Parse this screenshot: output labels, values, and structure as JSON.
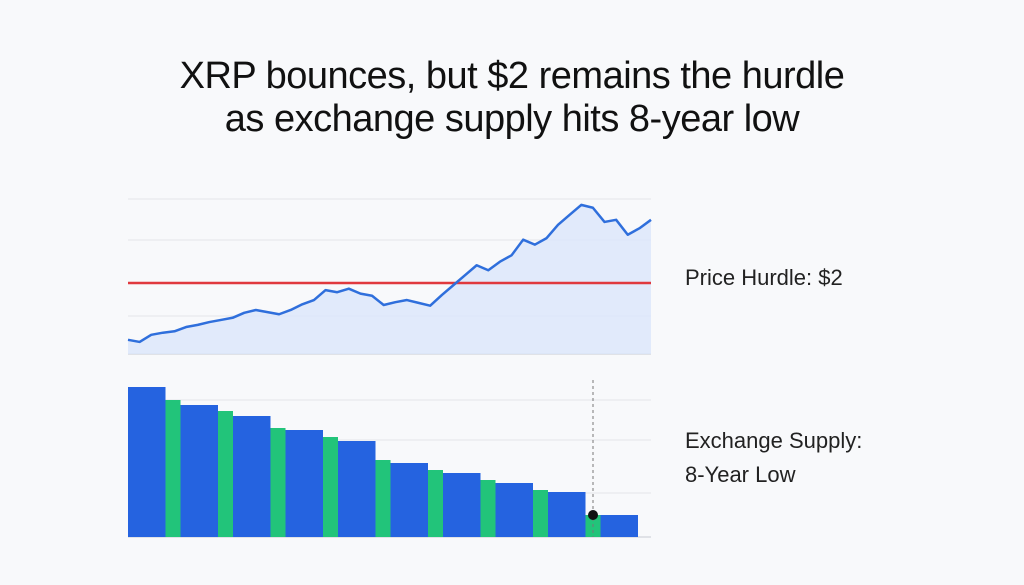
{
  "title": [
    "XRP bounces, but $2 remains the hurdle",
    "as exchange supply hits 8-year low"
  ],
  "chart_data": [
    {
      "type": "line",
      "name": "XRP price",
      "color": "#2f6fdc",
      "fill": "#dbe6fb",
      "values": [
        1.2,
        1.17,
        1.27,
        1.3,
        1.32,
        1.38,
        1.41,
        1.45,
        1.48,
        1.51,
        1.58,
        1.62,
        1.59,
        1.56,
        1.62,
        1.7,
        1.76,
        1.9,
        1.87,
        1.92,
        1.85,
        1.82,
        1.69,
        1.73,
        1.76,
        1.72,
        1.68,
        1.83,
        1.97,
        2.11,
        2.25,
        2.18,
        2.3,
        2.39,
        2.61,
        2.54,
        2.63,
        2.82,
        2.96,
        3.1,
        3.06,
        2.86,
        2.89,
        2.68,
        2.77,
        2.89
      ],
      "ylim": [
        1,
        3.2
      ],
      "hurdle": 2,
      "hurdle_color": "#e0393e",
      "annotation": "Price Hurdle: $2"
    },
    {
      "type": "bar",
      "name": "Exchange supply",
      "values": [
        150,
        137,
        132,
        126,
        121,
        109,
        107,
        100,
        96,
        77,
        74,
        67,
        64,
        57,
        54,
        47,
        45,
        22,
        22
      ],
      "colors": [
        "#2563e0",
        "#22c47a",
        "#2563e0",
        "#22c47a",
        "#2563e0",
        "#22c47a",
        "#2563e0",
        "#22c47a",
        "#2563e0",
        "#22c47a",
        "#2563e0",
        "#22c47a",
        "#2563e0",
        "#22c47a",
        "#2563e0",
        "#22c47a",
        "#2563e0",
        "#22c47a",
        "#2563e0"
      ],
      "ylim": [
        0,
        157
      ],
      "annotation": [
        "Exchange Supply:",
        "8-Year Low"
      ]
    }
  ]
}
